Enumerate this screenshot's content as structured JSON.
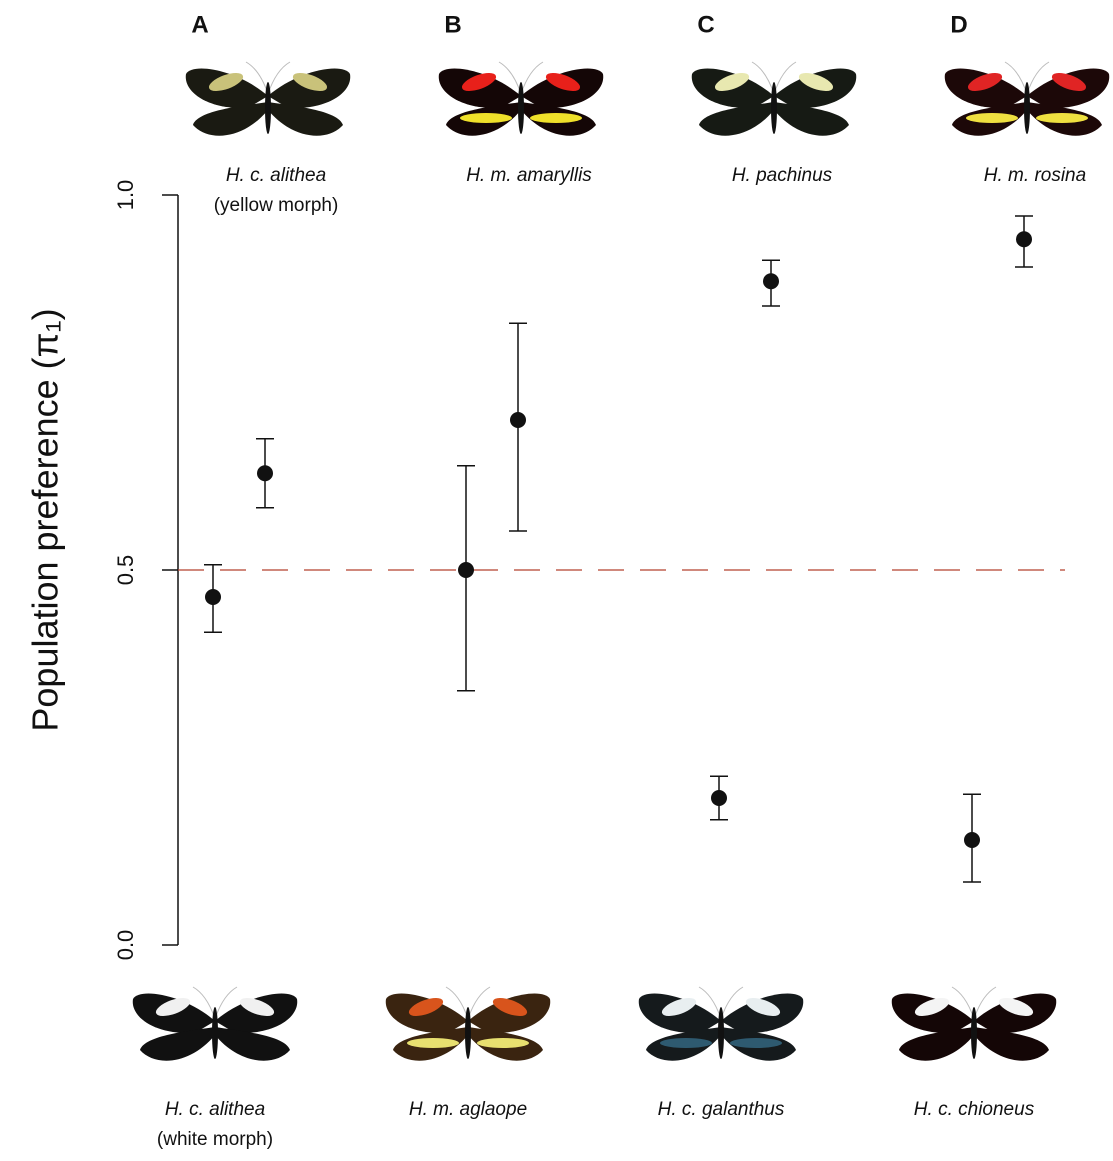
{
  "chart_data": {
    "type": "dot-errorbar",
    "ylabel": "Population preference (π₁)",
    "ylim": [
      0,
      1
    ],
    "yticks": [
      {
        "value": 0,
        "label": "0.0"
      },
      {
        "value": 0.5,
        "label": "0.5"
      },
      {
        "value": 1,
        "label": "1.0"
      }
    ],
    "reference_line": 0.5,
    "groups": [
      {
        "label": "A",
        "bottom": {
          "name": "H. c. alithea",
          "note": "(white morph)",
          "value": 0.464,
          "lower": 0.417,
          "upper": 0.507
        },
        "top": {
          "name": "H. c. alithea",
          "note": "(yellow morph)",
          "value": 0.629,
          "lower": 0.583,
          "upper": 0.675
        }
      },
      {
        "label": "B",
        "bottom": {
          "name": "H. m. aglaope",
          "value": 0.5,
          "lower": 0.339,
          "upper": 0.639
        },
        "top": {
          "name": "H. m. amaryllis",
          "value": 0.7,
          "lower": 0.552,
          "upper": 0.829
        }
      },
      {
        "label": "C",
        "bottom": {
          "name": "H. c. galanthus",
          "value": 0.196,
          "lower": 0.167,
          "upper": 0.225
        },
        "top": {
          "name": "H. pachinus",
          "value": 0.885,
          "lower": 0.852,
          "upper": 0.913
        }
      },
      {
        "label": "D",
        "bottom": {
          "name": "H. c. chioneus",
          "value": 0.14,
          "lower": 0.084,
          "upper": 0.201
        },
        "top": {
          "name": "H. m. rosina",
          "value": 0.941,
          "lower": 0.904,
          "upper": 0.972
        }
      }
    ]
  }
}
